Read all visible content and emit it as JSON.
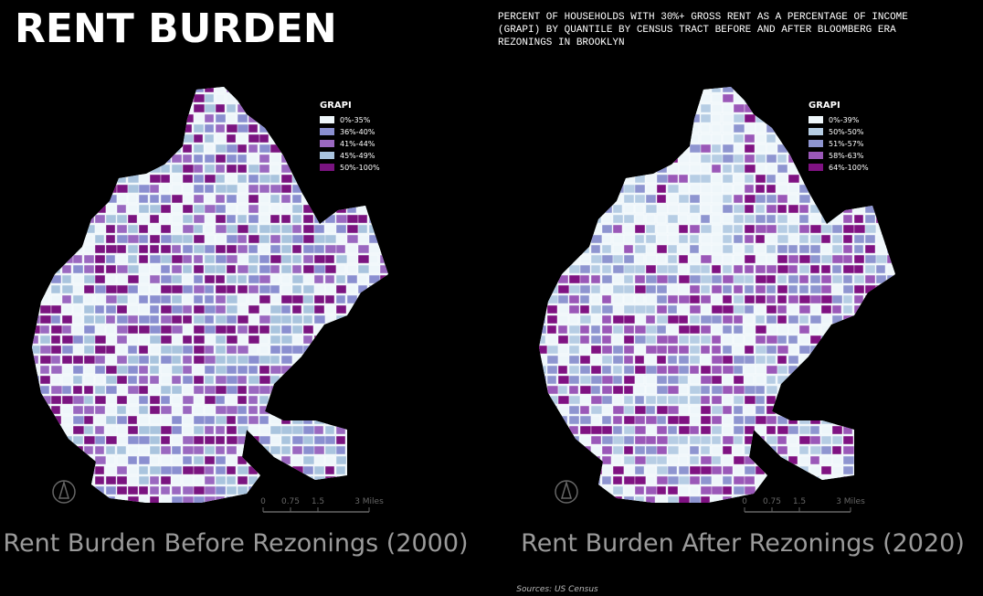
{
  "header": {
    "title": "RENT BURDEN",
    "subtitle": "PERCENT OF HOUSEHOLDS WITH 30%+ GROSS RENT AS A PERCENTAGE OF INCOME (GRAPI) BY QUANTILE BY CENSUS TRACT BEFORE AND AFTER BLOOMBERG ERA REZONINGS IN BROOKLYN"
  },
  "maps": [
    {
      "legend": {
        "title": "GRAPI",
        "items": [
          {
            "label": "0%-35%",
            "color": "#eef6fa"
          },
          {
            "label": "36%-40%",
            "color": "#8a8fd0"
          },
          {
            "label": "41%-44%",
            "color": "#9a68c0"
          },
          {
            "label": "45%-49%",
            "color": "#a9c4de"
          },
          {
            "label": "50%-100%",
            "color": "#7a1480"
          }
        ]
      },
      "scale": [
        "0",
        "0.75",
        "1.5",
        "3 Miles"
      ],
      "caption": "Rent Burden Before Rezonings (2000)"
    },
    {
      "legend": {
        "title": "GRAPI",
        "items": [
          {
            "label": "0%-39%",
            "color": "#eef6fa"
          },
          {
            "label": "50%-50%",
            "color": "#b6cde4"
          },
          {
            "label": "51%-57%",
            "color": "#8e95d0"
          },
          {
            "label": "58%-63%",
            "color": "#9a58b8"
          },
          {
            "label": "64%-100%",
            "color": "#7f1282"
          }
        ]
      },
      "scale": [
        "0",
        "0.75",
        "1.5",
        "3 Miles"
      ],
      "caption": "Rent Burden After Rezonings (2020)"
    }
  ],
  "source": "Sources: US Census"
}
